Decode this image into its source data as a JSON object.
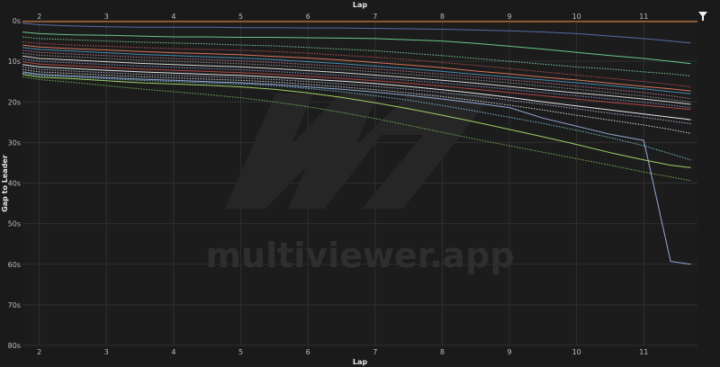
{
  "watermark": {
    "text": "multiviewer.app",
    "logo": "multiviewer-logo"
  },
  "filter_icon": "filter-icon",
  "chart_data": {
    "type": "line",
    "xlabel": "Lap",
    "ylabel": "Gap to Leader",
    "xlim": [
      1.75,
      11.8
    ],
    "ylim": [
      0,
      80
    ],
    "y_inverted": true,
    "x_ticks": [
      2,
      3,
      4,
      5,
      6,
      7,
      8,
      9,
      10,
      11
    ],
    "y_ticks": [
      0,
      10,
      20,
      30,
      40,
      50,
      60,
      70,
      80
    ],
    "y_tick_labels": [
      "0s",
      "10s",
      "20s",
      "30s",
      "40s",
      "50s",
      "60s",
      "70s",
      "80s"
    ],
    "grid": true,
    "leader_color": "#e8893a",
    "x": [
      1.75,
      2,
      2.5,
      3,
      3.5,
      4,
      4.5,
      5,
      5.5,
      6,
      6.5,
      7,
      7.5,
      8,
      8.5,
      9,
      9.5,
      10,
      10.5,
      11,
      11.4,
      11.7
    ],
    "series": [
      {
        "color": "#5b6fb0",
        "style": "solid",
        "values": [
          0.6,
          1.0,
          1.3,
          1.5,
          1.6,
          1.6,
          1.6,
          1.7,
          1.7,
          1.8,
          1.8,
          1.9,
          2.0,
          2.1,
          2.3,
          2.5,
          2.8,
          3.2,
          3.8,
          4.4,
          5.0,
          5.5
        ]
      },
      {
        "color": "#6fcf8f",
        "style": "solid",
        "values": [
          2.8,
          3.2,
          3.5,
          3.6,
          3.8,
          4.0,
          4.0,
          4.1,
          4.1,
          4.2,
          4.3,
          4.4,
          4.7,
          5.0,
          5.6,
          6.3,
          7.0,
          7.8,
          8.6,
          9.3,
          10.0,
          10.6
        ]
      },
      {
        "color": "#7ed89c",
        "style": "dotted",
        "values": [
          4.0,
          4.4,
          4.7,
          5.0,
          5.3,
          5.5,
          5.7,
          6.0,
          6.2,
          6.6,
          7.0,
          7.4,
          8.0,
          8.6,
          9.3,
          10.0,
          10.7,
          11.4,
          11.9,
          12.6,
          13.1,
          13.6
        ]
      },
      {
        "color": "#c9555a",
        "style": "dotted",
        "values": [
          5.2,
          5.6,
          6.0,
          6.3,
          6.6,
          6.9,
          7.1,
          7.3,
          7.6,
          8.0,
          8.5,
          9.0,
          9.6,
          10.3,
          11.0,
          11.8,
          12.6,
          13.4,
          14.2,
          15.0,
          15.7,
          16.3
        ]
      },
      {
        "color": "#e07a5f",
        "style": "solid",
        "values": [
          6.0,
          6.5,
          6.9,
          7.2,
          7.6,
          7.9,
          8.1,
          8.4,
          8.8,
          9.2,
          9.7,
          10.3,
          10.9,
          11.6,
          12.4,
          13.1,
          13.9,
          14.6,
          15.4,
          16.2,
          16.8,
          17.3
        ]
      },
      {
        "color": "#4a90b8",
        "style": "solid",
        "values": [
          6.6,
          7.1,
          7.5,
          7.9,
          8.3,
          8.6,
          8.9,
          9.2,
          9.6,
          10.1,
          10.6,
          11.2,
          11.8,
          12.5,
          13.2,
          13.9,
          14.6,
          15.3,
          16.0,
          16.8,
          17.5,
          18.0
        ]
      },
      {
        "color": "#d27ca6",
        "style": "dotted",
        "values": [
          7.3,
          7.8,
          8.2,
          8.6,
          9.0,
          9.3,
          9.6,
          9.9,
          10.3,
          10.8,
          11.3,
          11.9,
          12.5,
          13.2,
          13.9,
          14.6,
          15.3,
          16.1,
          16.9,
          17.7,
          18.5,
          19.2
        ]
      },
      {
        "color": "#9e9e9e",
        "style": "dotted",
        "values": [
          8.0,
          8.5,
          8.9,
          9.3,
          9.7,
          10.0,
          10.3,
          10.6,
          11.0,
          11.5,
          12.0,
          12.6,
          13.2,
          13.9,
          14.6,
          15.3,
          16.1,
          16.9,
          17.7,
          18.6,
          19.4,
          20.1
        ]
      },
      {
        "color": "#e0e0e0",
        "style": "solid",
        "values": [
          8.7,
          9.3,
          9.7,
          10.1,
          10.5,
          10.8,
          11.1,
          11.4,
          11.8,
          12.3,
          12.8,
          13.4,
          14.0,
          14.7,
          15.4,
          16.2,
          17.0,
          17.8,
          18.5,
          19.3,
          20.0,
          20.6
        ]
      },
      {
        "color": "#8ea0d8",
        "style": "dotted",
        "values": [
          9.4,
          10.0,
          10.4,
          10.8,
          11.2,
          11.5,
          11.8,
          12.1,
          12.5,
          13.0,
          13.5,
          14.1,
          14.7,
          15.4,
          16.1,
          16.9,
          17.7,
          18.5,
          19.3,
          20.1,
          20.8,
          21.4
        ]
      },
      {
        "color": "#b84a4a",
        "style": "solid",
        "values": [
          10.1,
          10.7,
          11.1,
          11.5,
          11.9,
          12.2,
          12.5,
          12.8,
          13.2,
          13.7,
          14.2,
          14.8,
          15.4,
          16.1,
          16.9,
          17.7,
          18.5,
          19.3,
          20.1,
          20.8,
          21.4,
          21.9
        ]
      },
      {
        "color": "#f0f0f0",
        "style": "solid",
        "values": [
          10.8,
          11.4,
          11.8,
          12.2,
          12.6,
          12.9,
          13.2,
          13.5,
          13.9,
          14.4,
          14.9,
          15.5,
          16.2,
          17.0,
          17.9,
          18.9,
          20.0,
          21.0,
          22.0,
          23.0,
          23.8,
          24.4
        ]
      },
      {
        "color": "#b0b8d8",
        "style": "dotted",
        "values": [
          11.4,
          12.0,
          12.4,
          12.8,
          13.2,
          13.5,
          13.8,
          14.1,
          14.5,
          15.0,
          15.6,
          16.2,
          16.9,
          17.7,
          18.6,
          19.6,
          20.6,
          21.7,
          22.8,
          23.8,
          24.7,
          25.4
        ]
      },
      {
        "color": "#e0e0e0",
        "style": "dotted",
        "values": [
          12.0,
          12.6,
          13.0,
          13.4,
          13.8,
          14.1,
          14.4,
          14.7,
          15.1,
          15.7,
          16.3,
          17.0,
          17.8,
          18.7,
          19.7,
          20.8,
          22.0,
          23.3,
          24.5,
          25.7,
          26.8,
          27.8
        ]
      },
      {
        "color": "#9bb0e0",
        "style": "solid",
        "values": [
          12.6,
          13.2,
          13.6,
          14.0,
          14.4,
          14.7,
          15.0,
          15.3,
          15.7,
          16.3,
          16.9,
          17.6,
          18.4,
          19.3,
          20.3,
          21.4,
          24.0,
          26.0,
          28.0,
          29.5,
          59.3,
          60.0
        ]
      },
      {
        "color": "#7cc5d9",
        "style": "dotted",
        "values": [
          12.9,
          13.5,
          13.9,
          14.3,
          14.7,
          15.0,
          15.3,
          15.6,
          16.0,
          16.7,
          17.5,
          18.5,
          19.6,
          20.9,
          22.3,
          23.8,
          25.3,
          27.0,
          28.8,
          30.8,
          32.8,
          34.3
        ]
      },
      {
        "color": "#a6d96a",
        "style": "solid",
        "values": [
          13.2,
          13.9,
          14.3,
          14.8,
          15.3,
          15.6,
          15.9,
          16.3,
          16.9,
          17.8,
          18.9,
          20.2,
          21.7,
          23.3,
          25.0,
          26.8,
          28.6,
          30.5,
          32.5,
          34.3,
          35.6,
          36.2
        ]
      },
      {
        "color": "#7dbb5a",
        "style": "dotted",
        "values": [
          13.8,
          14.5,
          15.2,
          16.0,
          16.8,
          17.5,
          18.2,
          19.0,
          20.0,
          21.2,
          22.6,
          24.1,
          25.8,
          27.5,
          29.2,
          30.8,
          32.4,
          34.0,
          35.6,
          37.3,
          38.5,
          39.4
        ]
      }
    ]
  }
}
